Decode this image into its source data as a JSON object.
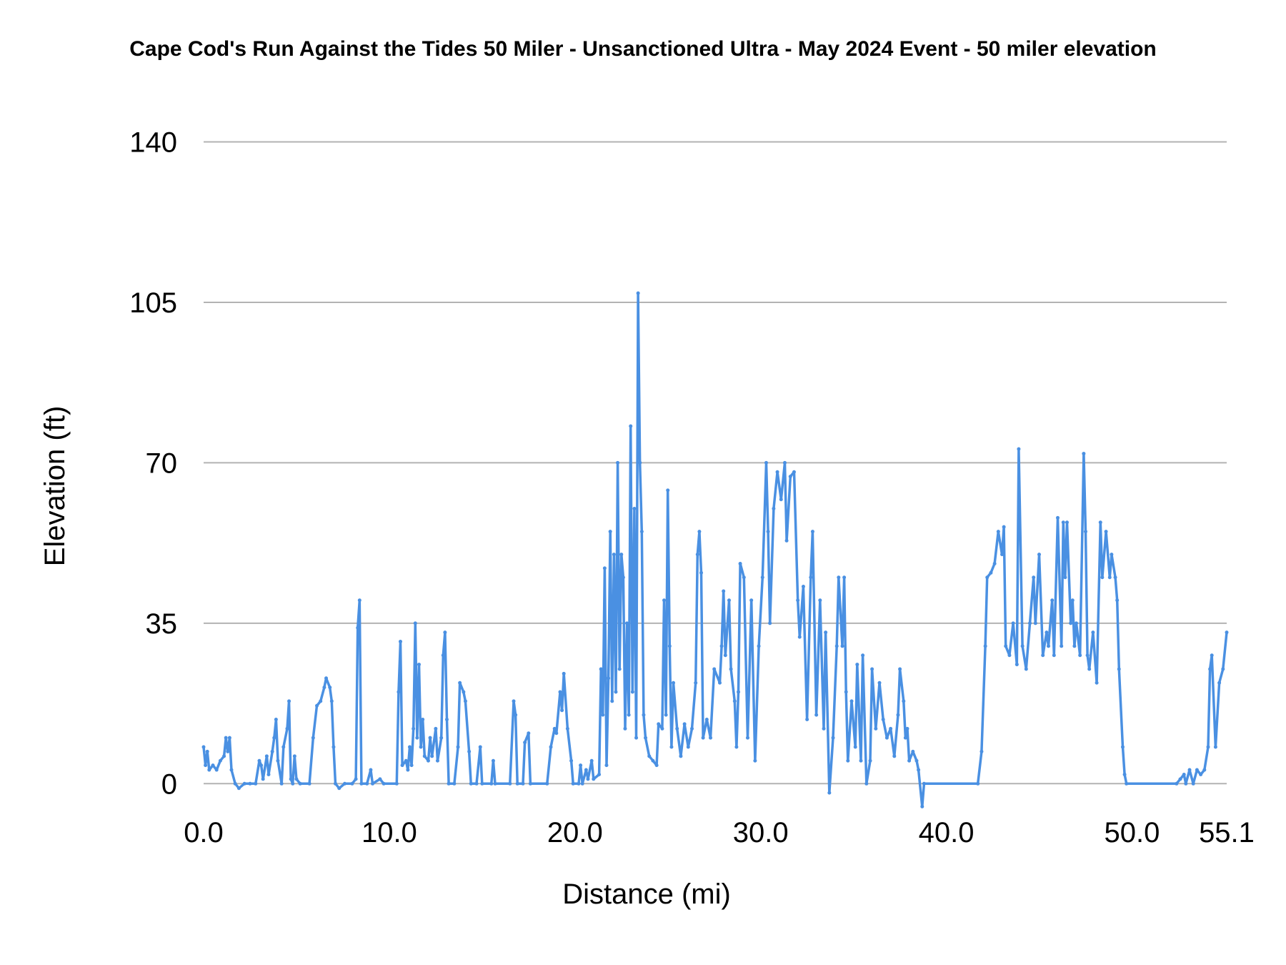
{
  "chart_data": {
    "type": "line",
    "title": "Cape Cod's Run Against the Tides 50 Miler - Unsanctioned Ultra -  May 2024 Event - 50 miler elevation",
    "xlabel": "Distance (mi)",
    "ylabel": "Elevation (ft)",
    "xlim": [
      0,
      55.1
    ],
    "ylim": [
      0,
      140
    ],
    "x_ticks": [
      "0.0",
      "10.0",
      "20.0",
      "30.0",
      "40.0",
      "50.0",
      "55.1"
    ],
    "x_tick_values": [
      0,
      10,
      20,
      30,
      40,
      50,
      55.1
    ],
    "y_ticks": [
      "0",
      "35",
      "70",
      "105",
      "140"
    ],
    "y_tick_values": [
      0,
      35,
      70,
      105,
      140
    ],
    "grid": "horizontal",
    "legend": "none",
    "series_color": "#4a90e2",
    "series": [
      {
        "points": [
          [
            0.0,
            8
          ],
          [
            0.1,
            4
          ],
          [
            0.2,
            7
          ],
          [
            0.3,
            3
          ],
          [
            0.5,
            4
          ],
          [
            0.7,
            3
          ],
          [
            0.9,
            5
          ],
          [
            1.1,
            6
          ],
          [
            1.2,
            10
          ],
          [
            1.3,
            7
          ],
          [
            1.4,
            10
          ],
          [
            1.5,
            3
          ],
          [
            1.7,
            0
          ],
          [
            1.9,
            -1
          ],
          [
            2.2,
            0
          ],
          [
            2.5,
            0
          ],
          [
            2.8,
            0
          ],
          [
            3.0,
            5
          ],
          [
            3.1,
            4
          ],
          [
            3.2,
            1
          ],
          [
            3.4,
            6
          ],
          [
            3.5,
            2
          ],
          [
            3.7,
            7
          ],
          [
            3.8,
            10
          ],
          [
            3.9,
            14
          ],
          [
            4.0,
            5
          ],
          [
            4.2,
            0
          ],
          [
            4.3,
            8
          ],
          [
            4.5,
            12
          ],
          [
            4.6,
            18
          ],
          [
            4.7,
            1
          ],
          [
            4.8,
            0
          ],
          [
            4.9,
            6
          ],
          [
            5.0,
            1
          ],
          [
            5.2,
            0
          ],
          [
            5.7,
            0
          ],
          [
            5.9,
            10
          ],
          [
            6.1,
            17
          ],
          [
            6.3,
            18
          ],
          [
            6.5,
            21
          ],
          [
            6.6,
            23
          ],
          [
            6.8,
            21
          ],
          [
            6.9,
            18
          ],
          [
            7.0,
            8
          ],
          [
            7.1,
            0
          ],
          [
            7.3,
            -1
          ],
          [
            7.6,
            0
          ],
          [
            8.0,
            0
          ],
          [
            8.2,
            1
          ],
          [
            8.3,
            34
          ],
          [
            8.4,
            40
          ],
          [
            8.5,
            0
          ],
          [
            8.8,
            0
          ],
          [
            9.0,
            3
          ],
          [
            9.1,
            0
          ],
          [
            9.5,
            1
          ],
          [
            9.7,
            0
          ],
          [
            10.4,
            0
          ],
          [
            10.5,
            20
          ],
          [
            10.6,
            31
          ],
          [
            10.7,
            4
          ],
          [
            10.9,
            5
          ],
          [
            11.0,
            3
          ],
          [
            11.1,
            8
          ],
          [
            11.2,
            4
          ],
          [
            11.3,
            12
          ],
          [
            11.4,
            35
          ],
          [
            11.5,
            10
          ],
          [
            11.6,
            26
          ],
          [
            11.7,
            8
          ],
          [
            11.8,
            14
          ],
          [
            11.9,
            6
          ],
          [
            12.1,
            5
          ],
          [
            12.2,
            10
          ],
          [
            12.3,
            6
          ],
          [
            12.5,
            12
          ],
          [
            12.6,
            5
          ],
          [
            12.8,
            10
          ],
          [
            12.9,
            28
          ],
          [
            13.0,
            33
          ],
          [
            13.1,
            14
          ],
          [
            13.2,
            0
          ],
          [
            13.5,
            0
          ],
          [
            13.7,
            8
          ],
          [
            13.8,
            22
          ],
          [
            14.0,
            20
          ],
          [
            14.1,
            18
          ],
          [
            14.3,
            7
          ],
          [
            14.4,
            0
          ],
          [
            14.7,
            0
          ],
          [
            14.9,
            8
          ],
          [
            15.0,
            0
          ],
          [
            15.5,
            0
          ],
          [
            15.6,
            5
          ],
          [
            15.7,
            0
          ],
          [
            16.5,
            0
          ],
          [
            16.7,
            18
          ],
          [
            16.8,
            15
          ],
          [
            16.9,
            0
          ],
          [
            17.2,
            0
          ],
          [
            17.3,
            9
          ],
          [
            17.5,
            11
          ],
          [
            17.6,
            0
          ],
          [
            18.5,
            0
          ],
          [
            18.7,
            8
          ],
          [
            18.9,
            12
          ],
          [
            19.0,
            11
          ],
          [
            19.2,
            20
          ],
          [
            19.3,
            16
          ],
          [
            19.4,
            24
          ],
          [
            19.6,
            12
          ],
          [
            19.8,
            5
          ],
          [
            19.9,
            0
          ],
          [
            20.2,
            0
          ],
          [
            20.3,
            4
          ],
          [
            20.4,
            0
          ],
          [
            20.6,
            3
          ],
          [
            20.7,
            1
          ],
          [
            20.9,
            5
          ],
          [
            21.0,
            1
          ],
          [
            21.3,
            2
          ],
          [
            21.4,
            25
          ],
          [
            21.5,
            15
          ],
          [
            21.6,
            47
          ],
          [
            21.7,
            4
          ],
          [
            21.8,
            23
          ],
          [
            21.9,
            55
          ],
          [
            22.0,
            18
          ],
          [
            22.1,
            50
          ],
          [
            22.2,
            20
          ],
          [
            22.3,
            70
          ],
          [
            22.4,
            25
          ],
          [
            22.5,
            50
          ],
          [
            22.6,
            45
          ],
          [
            22.7,
            12
          ],
          [
            22.8,
            35
          ],
          [
            22.9,
            15
          ],
          [
            23.0,
            78
          ],
          [
            23.1,
            20
          ],
          [
            23.2,
            60
          ],
          [
            23.3,
            10
          ],
          [
            23.4,
            107
          ],
          [
            23.5,
            70
          ],
          [
            23.6,
            55
          ],
          [
            23.7,
            15
          ],
          [
            23.8,
            10
          ],
          [
            24.0,
            6
          ],
          [
            24.2,
            5
          ],
          [
            24.4,
            4
          ],
          [
            24.5,
            13
          ],
          [
            24.7,
            12
          ],
          [
            24.8,
            40
          ],
          [
            24.9,
            15
          ],
          [
            25.0,
            64
          ],
          [
            25.1,
            30
          ],
          [
            25.2,
            8
          ],
          [
            25.3,
            22
          ],
          [
            25.5,
            12
          ],
          [
            25.7,
            6
          ],
          [
            25.9,
            13
          ],
          [
            26.1,
            8
          ],
          [
            26.3,
            12
          ],
          [
            26.5,
            22
          ],
          [
            26.6,
            50
          ],
          [
            26.7,
            55
          ],
          [
            26.8,
            46
          ],
          [
            26.9,
            10
          ],
          [
            27.1,
            14
          ],
          [
            27.3,
            10
          ],
          [
            27.5,
            25
          ],
          [
            27.8,
            22
          ],
          [
            27.9,
            30
          ],
          [
            28.0,
            42
          ],
          [
            28.1,
            28
          ],
          [
            28.3,
            40
          ],
          [
            28.4,
            25
          ],
          [
            28.6,
            18
          ],
          [
            28.7,
            8
          ],
          [
            28.8,
            20
          ],
          [
            28.9,
            48
          ],
          [
            29.1,
            45
          ],
          [
            29.3,
            10
          ],
          [
            29.5,
            40
          ],
          [
            29.7,
            5
          ],
          [
            29.9,
            30
          ],
          [
            30.1,
            45
          ],
          [
            30.3,
            70
          ],
          [
            30.4,
            55
          ],
          [
            30.5,
            35
          ],
          [
            30.7,
            60
          ],
          [
            30.9,
            68
          ],
          [
            31.1,
            62
          ],
          [
            31.3,
            70
          ],
          [
            31.4,
            53
          ],
          [
            31.6,
            67
          ],
          [
            31.8,
            68
          ],
          [
            32.0,
            40
          ],
          [
            32.1,
            32
          ],
          [
            32.3,
            43
          ],
          [
            32.5,
            14
          ],
          [
            32.7,
            45
          ],
          [
            32.8,
            55
          ],
          [
            33.0,
            15
          ],
          [
            33.2,
            40
          ],
          [
            33.4,
            12
          ],
          [
            33.5,
            33
          ],
          [
            33.7,
            -2
          ],
          [
            33.9,
            10
          ],
          [
            34.1,
            30
          ],
          [
            34.2,
            45
          ],
          [
            34.4,
            30
          ],
          [
            34.5,
            45
          ],
          [
            34.6,
            20
          ],
          [
            34.7,
            5
          ],
          [
            34.9,
            18
          ],
          [
            35.1,
            8
          ],
          [
            35.2,
            26
          ],
          [
            35.4,
            5
          ],
          [
            35.5,
            28
          ],
          [
            35.7,
            0
          ],
          [
            35.9,
            5
          ],
          [
            36.0,
            25
          ],
          [
            36.2,
            12
          ],
          [
            36.4,
            22
          ],
          [
            36.6,
            14
          ],
          [
            36.8,
            10
          ],
          [
            37.0,
            12
          ],
          [
            37.2,
            6
          ],
          [
            37.4,
            15
          ],
          [
            37.5,
            25
          ],
          [
            37.7,
            18
          ],
          [
            37.8,
            10
          ],
          [
            37.9,
            12
          ],
          [
            38.0,
            5
          ],
          [
            38.2,
            7
          ],
          [
            38.4,
            5
          ],
          [
            38.5,
            3
          ],
          [
            38.7,
            -5
          ],
          [
            38.8,
            0
          ],
          [
            41.7,
            0
          ],
          [
            41.9,
            7
          ],
          [
            42.1,
            30
          ],
          [
            42.2,
            45
          ],
          [
            42.4,
            46
          ],
          [
            42.6,
            48
          ],
          [
            42.8,
            55
          ],
          [
            43.0,
            50
          ],
          [
            43.1,
            56
          ],
          [
            43.2,
            30
          ],
          [
            43.4,
            28
          ],
          [
            43.6,
            35
          ],
          [
            43.8,
            26
          ],
          [
            43.9,
            73
          ],
          [
            44.1,
            30
          ],
          [
            44.3,
            25
          ],
          [
            44.5,
            35
          ],
          [
            44.7,
            45
          ],
          [
            44.8,
            35
          ],
          [
            45.0,
            50
          ],
          [
            45.2,
            28
          ],
          [
            45.4,
            33
          ],
          [
            45.5,
            30
          ],
          [
            45.7,
            40
          ],
          [
            45.8,
            28
          ],
          [
            46.0,
            58
          ],
          [
            46.2,
            30
          ],
          [
            46.3,
            57
          ],
          [
            46.4,
            45
          ],
          [
            46.5,
            57
          ],
          [
            46.7,
            35
          ],
          [
            46.8,
            40
          ],
          [
            46.9,
            30
          ],
          [
            47.0,
            35
          ],
          [
            47.2,
            28
          ],
          [
            47.4,
            72
          ],
          [
            47.5,
            55
          ],
          [
            47.6,
            28
          ],
          [
            47.7,
            25
          ],
          [
            47.9,
            33
          ],
          [
            48.1,
            22
          ],
          [
            48.3,
            57
          ],
          [
            48.4,
            45
          ],
          [
            48.6,
            55
          ],
          [
            48.8,
            45
          ],
          [
            48.9,
            50
          ],
          [
            49.1,
            45
          ],
          [
            49.2,
            40
          ],
          [
            49.3,
            25
          ],
          [
            49.5,
            8
          ],
          [
            49.6,
            2
          ],
          [
            49.7,
            0
          ],
          [
            52.4,
            0
          ],
          [
            52.6,
            1
          ],
          [
            52.8,
            2
          ],
          [
            52.9,
            0
          ],
          [
            53.1,
            3
          ],
          [
            53.3,
            0
          ],
          [
            53.5,
            3
          ],
          [
            53.7,
            2
          ],
          [
            53.9,
            3
          ],
          [
            54.1,
            8
          ],
          [
            54.2,
            25
          ],
          [
            54.3,
            28
          ],
          [
            54.5,
            8
          ],
          [
            54.7,
            22
          ],
          [
            54.9,
            25
          ],
          [
            55.1,
            33
          ]
        ]
      }
    ]
  }
}
